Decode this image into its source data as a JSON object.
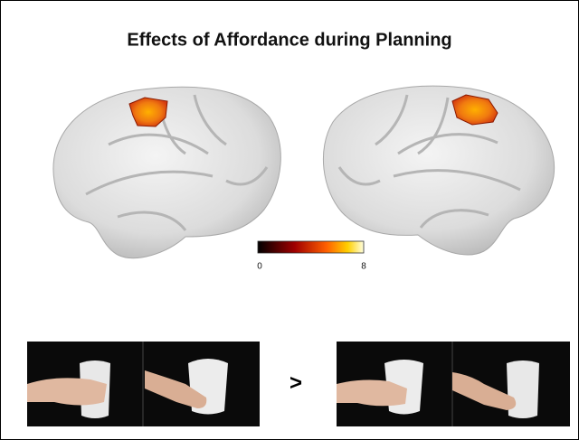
{
  "figure": {
    "title": "Effects of Affordance during Planning",
    "colorbar": {
      "min": 0,
      "max": 8
    },
    "comparison": ">"
  }
}
